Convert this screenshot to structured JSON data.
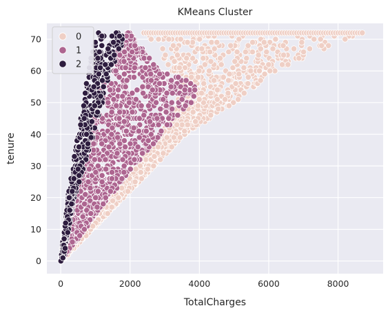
{
  "chart_data": {
    "type": "scatter",
    "title": "KMeans Cluster",
    "xlabel": "TotalCharges",
    "ylabel": "tenure",
    "xlim": [
      -400,
      9300
    ],
    "ylim": [
      -4,
      75
    ],
    "xticks": [
      0,
      2000,
      4000,
      6000,
      8000
    ],
    "yticks": [
      0,
      10,
      20,
      30,
      40,
      50,
      60,
      70
    ],
    "grid": true,
    "legend_position": "top-left",
    "legend": [
      {
        "label": "0",
        "color": "#efcfc5"
      },
      {
        "label": "1",
        "color": "#ad6590"
      },
      {
        "label": "2",
        "color": "#2e1d3f"
      }
    ],
    "series": [
      {
        "name": "0",
        "color": "#efcfc5",
        "region": {
          "description_free": true,
          "y_range": [
            1,
            72
          ],
          "x_min_by_y": [
            [
              1,
              40
            ],
            [
              20,
              1300
            ],
            [
              40,
              2900
            ],
            [
              50,
              3400
            ],
            [
              60,
              3200
            ],
            [
              72,
              2400
            ]
          ],
          "x_max_by_y": [
            [
              1,
              120
            ],
            [
              20,
              1800
            ],
            [
              40,
              3600
            ],
            [
              50,
              5000
            ],
            [
              60,
              6200
            ],
            [
              72,
              8700
            ]
          ]
        }
      },
      {
        "name": "1",
        "color": "#ad6590",
        "region": {
          "y_range": [
            1,
            72
          ],
          "x_min_by_y": [
            [
              1,
              20
            ],
            [
              20,
              300
            ],
            [
              40,
              750
            ],
            [
              50,
              1000
            ],
            [
              60,
              1300
            ],
            [
              72,
              1900
            ]
          ],
          "x_max_by_y": [
            [
              1,
              80
            ],
            [
              20,
              1400
            ],
            [
              40,
              2900
            ],
            [
              50,
              3800
            ],
            [
              55,
              4000
            ],
            [
              62,
              2700
            ],
            [
              72,
              2000
            ]
          ]
        }
      },
      {
        "name": "2",
        "color": "#2e1d3f",
        "region": {
          "y_range": [
            0,
            72
          ],
          "x_min_by_y": [
            [
              0,
              0
            ],
            [
              20,
              200
            ],
            [
              40,
              500
            ],
            [
              60,
              800
            ],
            [
              72,
              1000
            ]
          ],
          "x_max_by_y": [
            [
              0,
              60
            ],
            [
              20,
              400
            ],
            [
              40,
              950
            ],
            [
              60,
              1450
            ],
            [
              72,
              1900
            ]
          ]
        }
      }
    ]
  }
}
